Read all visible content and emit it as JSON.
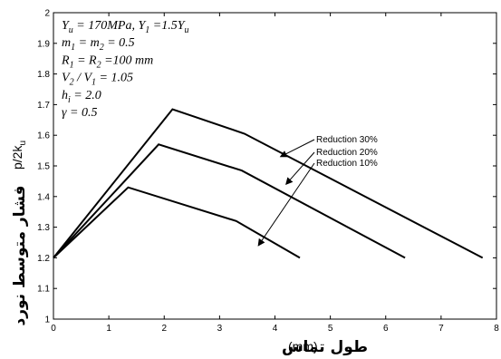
{
  "chart_data": {
    "type": "line",
    "xlabel_text": "طول تماس",
    "xlabel_unit": "(mm)",
    "ylabel_text": "فشار متوسط نورد",
    "ylabel_unit": "p/2k",
    "ylabel_unit_sub": "u",
    "xlim": [
      0,
      8
    ],
    "ylim": [
      1,
      2
    ],
    "x_ticks": [
      "0",
      "1",
      "2",
      "3",
      "4",
      "5",
      "6",
      "7",
      "8"
    ],
    "y_ticks": [
      "1",
      "1.1",
      "1.2",
      "1.3",
      "1.4",
      "1.5",
      "1.6",
      "1.7",
      "1.8",
      "1.9",
      "2"
    ],
    "grid": false,
    "parameters": [
      {
        "main": "Y",
        "sub": "u",
        "rest": " = 170MPa,  Y",
        "sub2": "1",
        "rest2": " =1.5Y",
        "sub3": "u"
      },
      {
        "main": "m",
        "sub": "1",
        "rest": " = m",
        "sub2": "2",
        "rest2": " = 0.5",
        "sub3": ""
      },
      {
        "main": "R",
        "sub": "1",
        "rest": " = R",
        "sub2": "2",
        "rest2": " =100 mm",
        "sub3": ""
      },
      {
        "main": "V",
        "sub": "2",
        "rest": " / V",
        "sub2": "1",
        "rest2": " = 1.05",
        "sub3": ""
      },
      {
        "main": "h",
        "sub": "i",
        "rest": " = 2.0",
        "sub2": "",
        "rest2": "",
        "sub3": ""
      },
      {
        "main": "γ",
        "sub": "",
        "rest": " = 0.5",
        "sub2": "",
        "rest2": "",
        "sub3": ""
      }
    ],
    "series": [
      {
        "name": "Reduction 30%",
        "x": [
          0,
          2.15,
          3.45,
          7.75
        ],
        "y": [
          1.2,
          1.685,
          1.605,
          1.2
        ]
      },
      {
        "name": "Reduction 20%",
        "x": [
          0,
          1.9,
          3.4,
          6.35
        ],
        "y": [
          1.2,
          1.57,
          1.485,
          1.2
        ]
      },
      {
        "name": "Reduction 10%",
        "x": [
          0,
          1.35,
          3.3,
          4.45
        ],
        "y": [
          1.2,
          1.43,
          1.32,
          1.2
        ]
      }
    ]
  }
}
